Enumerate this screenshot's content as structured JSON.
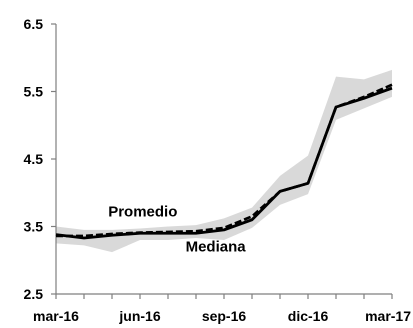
{
  "chart_data": {
    "type": "line",
    "title": "",
    "xlabel": "",
    "ylabel": "",
    "ylim": [
      2.5,
      6.5
    ],
    "yticks": [
      2.5,
      3.5,
      4.5,
      5.5,
      6.5
    ],
    "ytick_labels": [
      "2.5",
      "3.5",
      "4.5",
      "5.5",
      "6.5"
    ],
    "x_categories": [
      "mar-16",
      "abr-16",
      "may-16",
      "jun-16",
      "jul-16",
      "ago-16",
      "sep-16",
      "oct-16",
      "nov-16",
      "dic-16",
      "ene-17",
      "feb-17",
      "mar-17"
    ],
    "xtick_labels": [
      "mar-16",
      "jun-16",
      "sep-16",
      "dic-16",
      "mar-17"
    ],
    "xtick_indices": [
      0,
      3,
      6,
      9,
      12
    ],
    "grid": false,
    "legend": "none",
    "series": [
      {
        "id": "promedio",
        "style": "solid",
        "color": "#000000",
        "values": [
          3.38,
          3.33,
          3.37,
          3.4,
          3.4,
          3.4,
          3.45,
          3.6,
          4.02,
          4.14,
          5.27,
          5.4,
          5.55
        ]
      },
      {
        "id": "mediana",
        "style": "dashed",
        "color": "#000000",
        "values": [
          3.36,
          3.36,
          3.39,
          3.41,
          3.42,
          3.43,
          3.48,
          3.65,
          4.02,
          4.14,
          5.27,
          5.42,
          5.6
        ]
      }
    ],
    "band": {
      "color": "#d9d9d9",
      "upper": [
        3.5,
        3.45,
        3.45,
        3.47,
        3.5,
        3.52,
        3.62,
        3.78,
        4.25,
        4.55,
        5.72,
        5.68,
        5.82
      ],
      "lower": [
        3.25,
        3.22,
        3.12,
        3.3,
        3.3,
        3.33,
        3.3,
        3.48,
        3.82,
        3.98,
        5.08,
        5.25,
        5.42
      ]
    },
    "annotations": [
      {
        "text": "Promedio",
        "x": 3.1,
        "y": 3.65
      },
      {
        "text": "Mediana",
        "x": 5.7,
        "y": 3.13
      }
    ]
  }
}
